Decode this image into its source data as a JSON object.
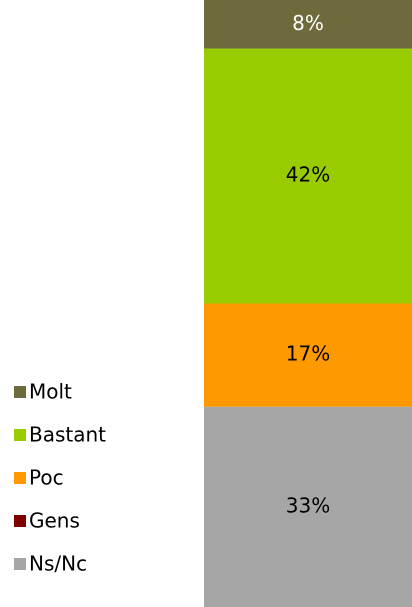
{
  "chart_data": {
    "type": "stacked_bar",
    "categories": [
      null
    ],
    "ylim": [
      0,
      100
    ],
    "series": [
      {
        "name": "Ns/Nc",
        "color": "#a6a6a6",
        "values": [
          33
        ],
        "value_labels": [
          "33%"
        ]
      },
      {
        "name": "Gens",
        "color": "#800000",
        "values": [
          0
        ],
        "value_labels": [
          null
        ]
      },
      {
        "name": "Poc",
        "color": "#ff9900",
        "values": [
          17
        ],
        "value_labels": [
          "17%"
        ]
      },
      {
        "name": "Bastant",
        "color": "#99cc00",
        "values": [
          42
        ],
        "value_labels": [
          "42%"
        ]
      },
      {
        "name": "Molt",
        "color": "#6e6a3c",
        "values": [
          8
        ],
        "value_labels": [
          "8%"
        ]
      }
    ]
  }
}
